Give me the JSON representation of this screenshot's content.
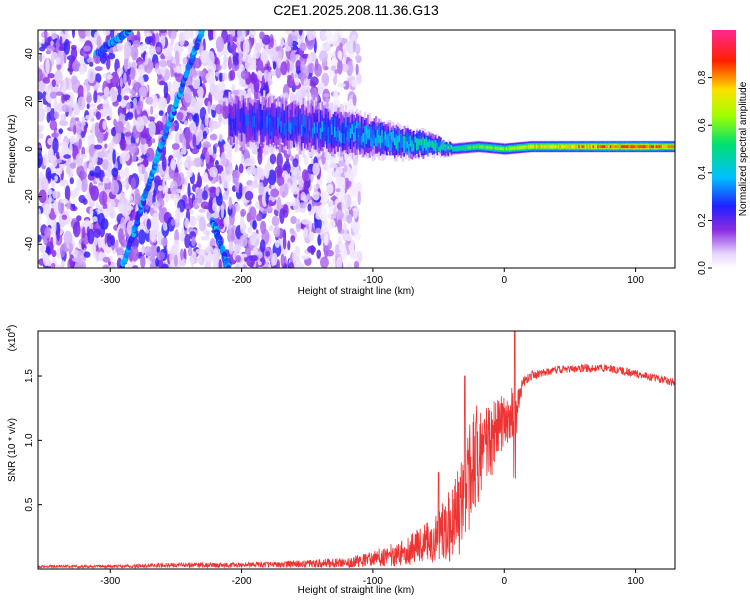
{
  "title": "C2E1.2025.208.11.36.G13",
  "chart_data": [
    {
      "type": "heatmap",
      "name": "spectrogram",
      "xlabel": "Height of straight line (km)",
      "ylabel": "Frequency (Hz)",
      "xlim": [
        -355,
        130
      ],
      "ylim": [
        -50,
        50
      ],
      "xticks": [
        -300,
        -200,
        -100,
        0,
        100
      ],
      "yticks": [
        -40,
        -20,
        0,
        20,
        40
      ],
      "colorbar": {
        "label": "Normalized spectral amplitude",
        "range": [
          0,
          1
        ],
        "ticks": [
          0.0,
          0.2,
          0.4,
          0.6,
          0.8
        ],
        "tick_labels": [
          "0.0",
          "0.2",
          "0.4",
          "0.6",
          "0.8"
        ]
      },
      "features": {
        "carrier_ridge": {
          "x": [
            -210,
            -180,
            -150,
            -120,
            -100,
            -80,
            -60,
            -40,
            -20,
            0,
            20,
            50,
            80,
            100,
            130
          ],
          "center_hz": [
            12,
            11,
            9,
            7,
            5,
            3,
            2,
            0,
            1,
            0,
            1,
            1,
            1,
            1,
            1
          ],
          "half_width_hz": [
            8,
            8,
            8,
            7,
            6,
            5,
            4,
            2,
            2,
            2,
            2,
            2,
            2,
            2,
            2
          ],
          "amplitude": [
            0.25,
            0.3,
            0.3,
            0.35,
            0.4,
            0.45,
            0.45,
            0.5,
            0.6,
            0.65,
            0.75,
            0.8,
            0.85,
            0.9,
            0.8
          ]
        },
        "diagonal_streaks": [
          {
            "x": [
              -310,
              -285
            ],
            "y": [
              40,
              50
            ]
          },
          {
            "x": [
              -291,
              -262
            ],
            "y": [
              -50,
              0
            ]
          },
          {
            "x": [
              -262,
              -230
            ],
            "y": [
              0,
              50
            ]
          },
          {
            "x": [
              -222,
              -210
            ],
            "y": [
              -30,
              -50
            ]
          }
        ]
      }
    },
    {
      "type": "line",
      "name": "snr",
      "xlabel": "Height of straight line (km)",
      "ylabel": "SNR (10 * v/v)",
      "scale_label": "(x10",
      "scale_exponent": "4",
      "scale_suffix": ")",
      "xlim": [
        -355,
        130
      ],
      "ylim": [
        0,
        1.85
      ],
      "xticks": [
        -300,
        -200,
        -100,
        0,
        100
      ],
      "yticks": [
        0.5,
        1.0,
        1.5
      ],
      "ytick_labels": [
        "0.5",
        "1.0",
        "1.5"
      ],
      "color": "#ee3333",
      "series": [
        {
          "x": [
            -355,
            -300,
            -250,
            -200,
            -150,
            -120,
            -100,
            -80,
            -60,
            -50,
            -40,
            -30,
            -25,
            -20,
            -15,
            -10,
            -5,
            0,
            5,
            8,
            10,
            15,
            20,
            30,
            40,
            60,
            80,
            100,
            130
          ],
          "y": [
            0.02,
            0.02,
            0.03,
            0.03,
            0.04,
            0.05,
            0.08,
            0.12,
            0.2,
            0.25,
            0.35,
            0.55,
            0.75,
            0.9,
            0.9,
            1.0,
            1.1,
            1.15,
            1.25,
            0.9,
            1.3,
            1.45,
            1.5,
            1.53,
            1.55,
            1.56,
            1.56,
            1.52,
            1.45
          ],
          "noise": [
            0.01,
            0.01,
            0.02,
            0.02,
            0.03,
            0.04,
            0.06,
            0.1,
            0.15,
            0.2,
            0.3,
            0.4,
            0.45,
            0.4,
            0.35,
            0.3,
            0.25,
            0.2,
            0.25,
            0.4,
            0.1,
            0.05,
            0.04,
            0.03,
            0.03,
            0.03,
            0.03,
            0.03,
            0.03
          ]
        }
      ],
      "spikes": [
        {
          "x": 8,
          "y": 1.85
        },
        {
          "x": -30,
          "y": 1.5
        },
        {
          "x": -50,
          "y": 0.75
        }
      ]
    }
  ]
}
